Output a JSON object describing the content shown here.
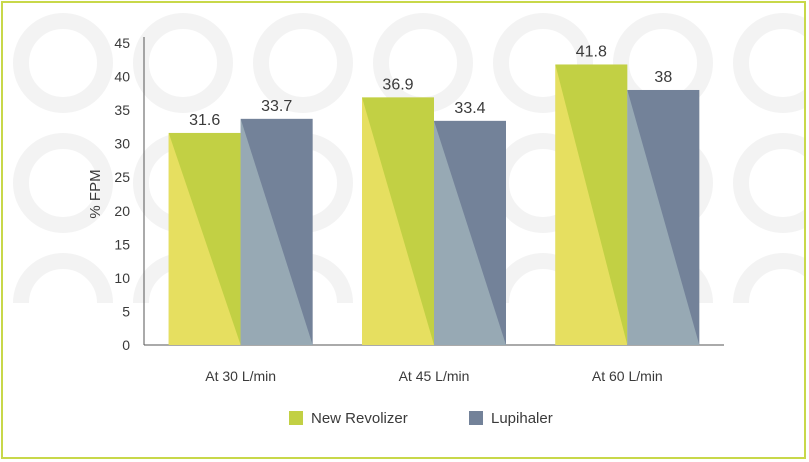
{
  "chart_data": {
    "type": "bar",
    "categories": [
      "At 30 L/min",
      "At 45 L/min",
      "At 60 L/min"
    ],
    "series": [
      {
        "name": "New Revolizer",
        "values": [
          31.6,
          36.9,
          41.8
        ],
        "color": "#c2d044"
      },
      {
        "name": "Lupihaler",
        "values": [
          33.7,
          33.4,
          38
        ],
        "color": "#738299"
      }
    ],
    "value_labels": [
      [
        "31.6",
        "36.9",
        "41.8"
      ],
      [
        "33.7",
        "33.4",
        "38"
      ]
    ],
    "title": "",
    "xlabel": "",
    "ylabel": "% FPM",
    "ylim": [
      0,
      45
    ],
    "yticks": [
      0,
      5,
      10,
      15,
      20,
      25,
      30,
      35,
      40,
      45
    ],
    "grid": false,
    "legend": "bottom"
  }
}
